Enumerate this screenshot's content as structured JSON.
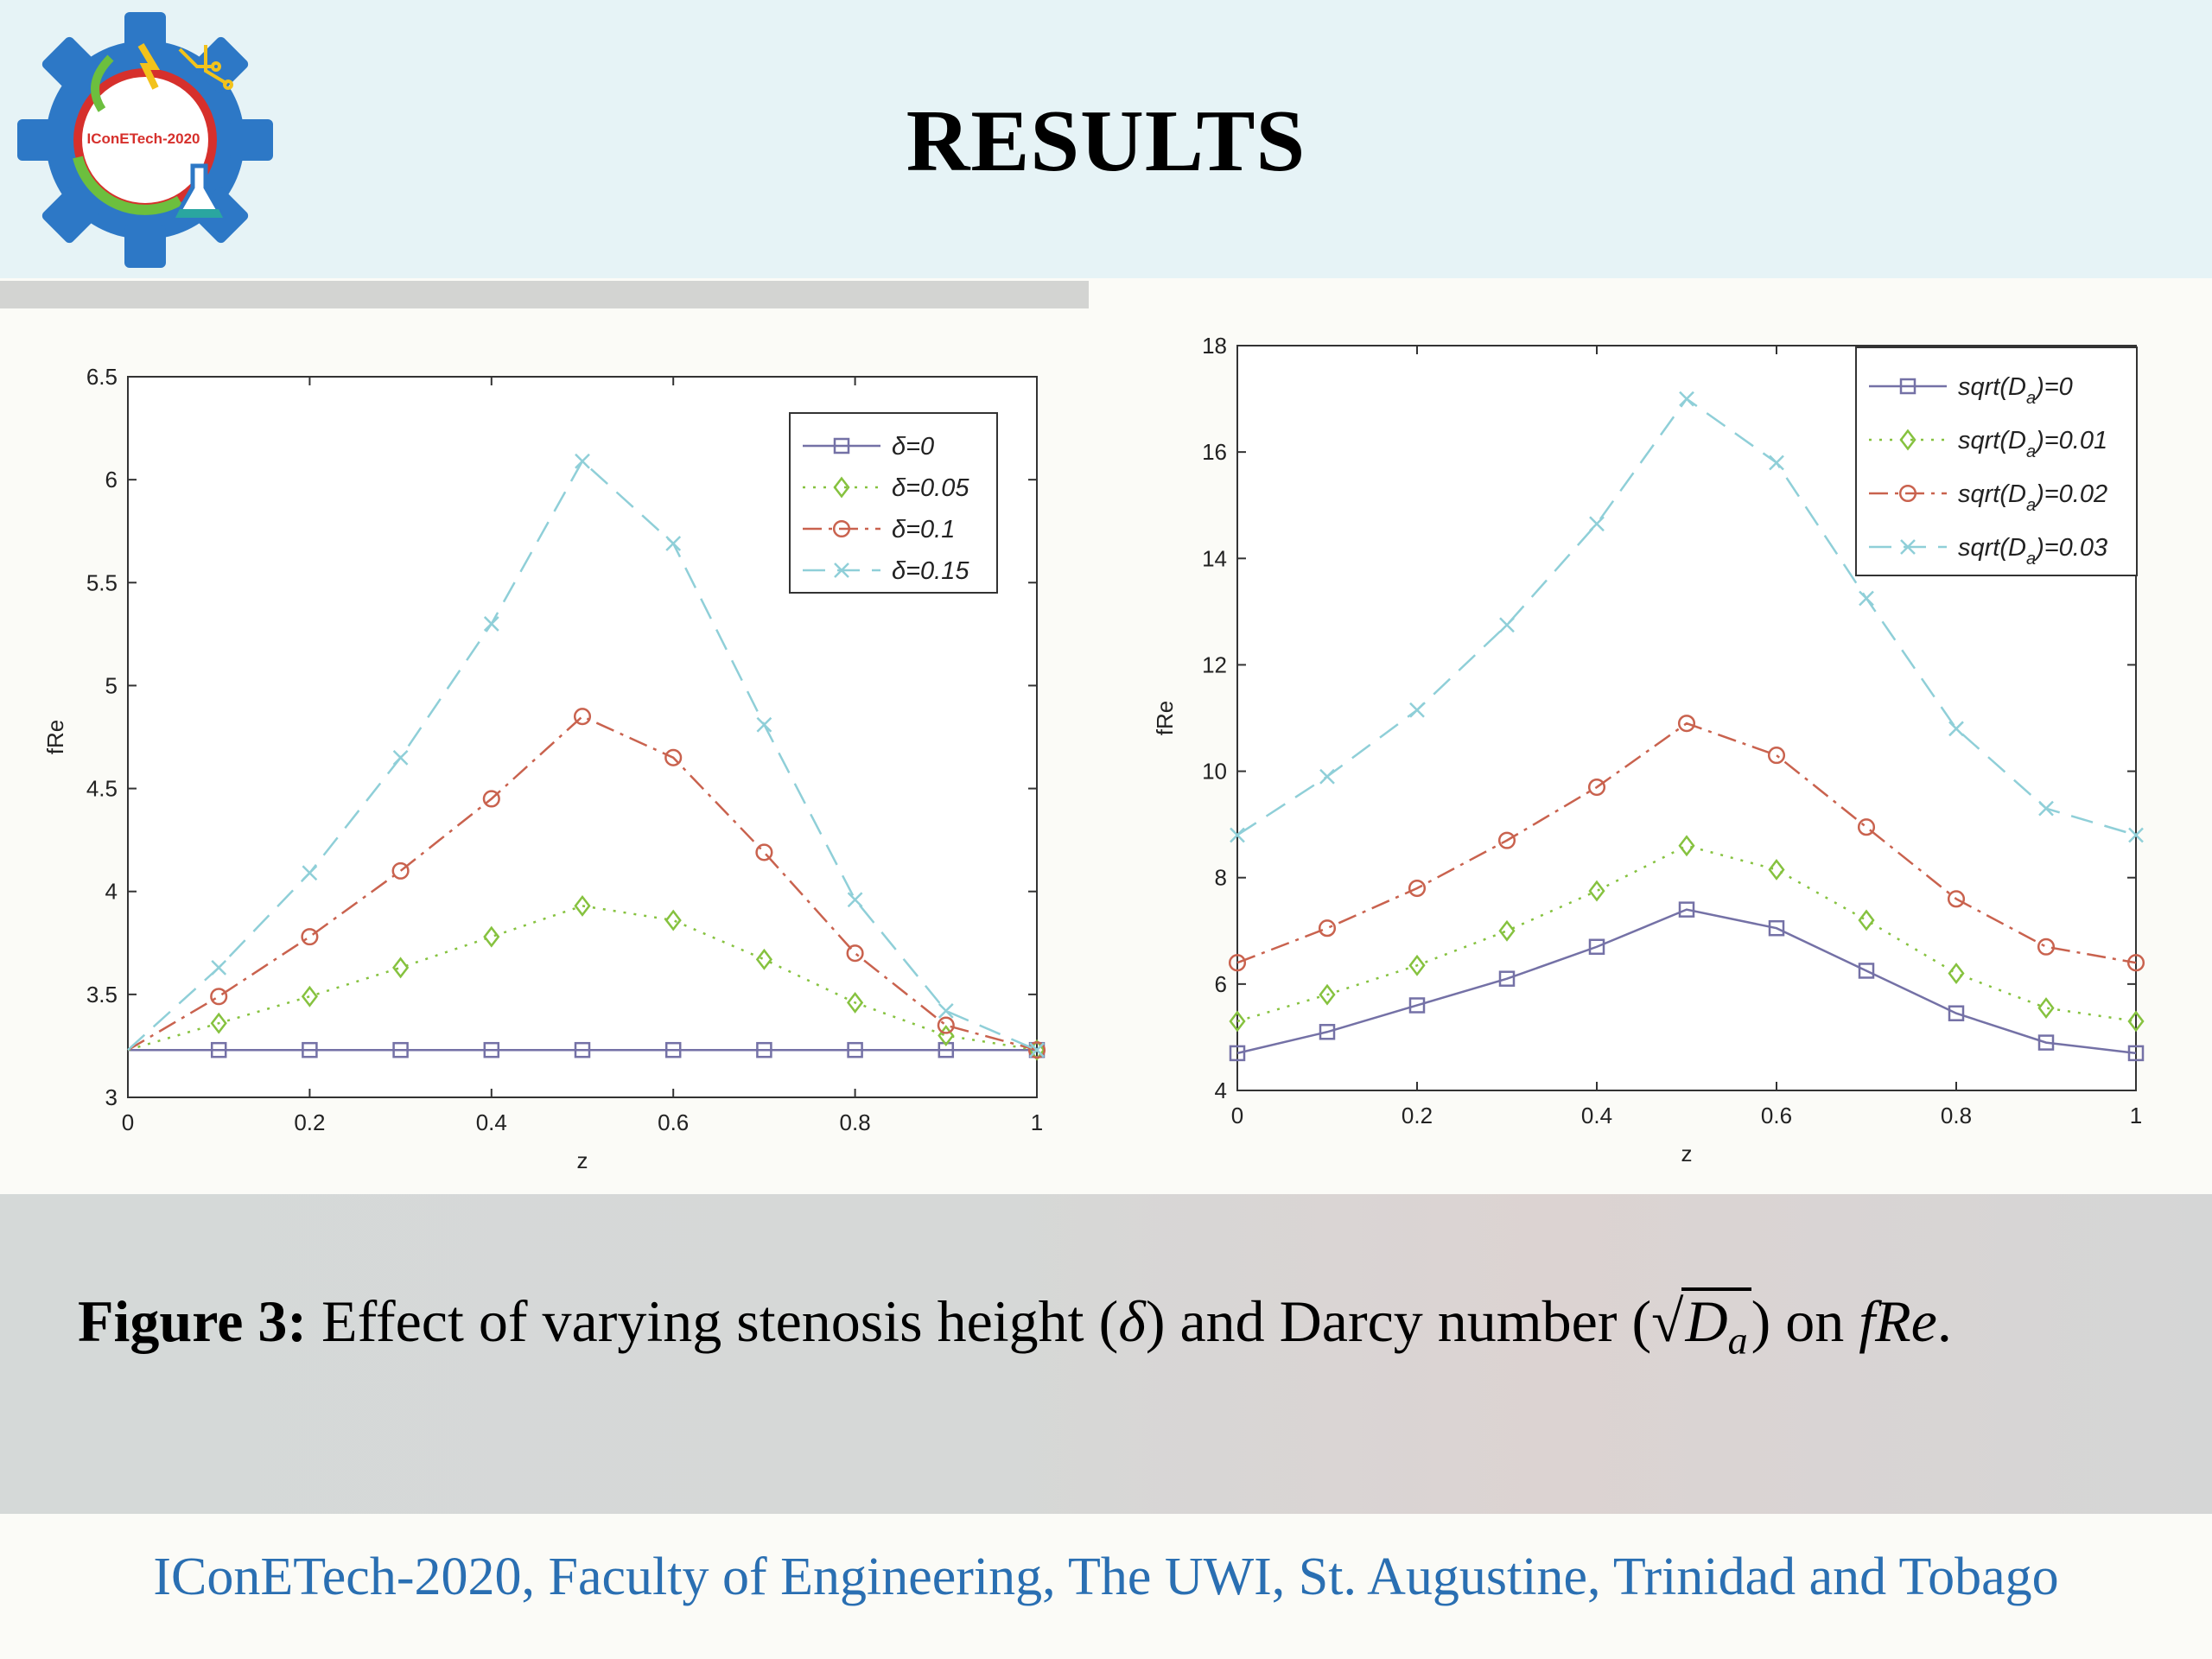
{
  "header": {
    "title": "RESULTS",
    "logo_text": "IConETech-2020"
  },
  "colors": {
    "header_bg": "#e6f3f6",
    "series": [
      "#7471a6",
      "#86c23f",
      "#c9624e",
      "#8fcfd8"
    ],
    "footer_text": "#2a6fb2"
  },
  "chart_data": [
    {
      "type": "line",
      "title": "",
      "xlabel": "z",
      "ylabel": "fRe",
      "xlim": [
        0,
        1
      ],
      "ylim": [
        3,
        6.5
      ],
      "xticks": [
        "0",
        "0.2",
        "0.4",
        "0.6",
        "0.8",
        "1"
      ],
      "yticks": [
        "3",
        "3.5",
        "4",
        "4.5",
        "5",
        "5.5",
        "6",
        "6.5"
      ],
      "legend_position": "top-right",
      "grid": false,
      "x": [
        0,
        0.1,
        0.2,
        0.3,
        0.4,
        0.5,
        0.6,
        0.7,
        0.8,
        0.9,
        1
      ],
      "series": [
        {
          "name": "δ=0",
          "marker": "square",
          "dash": "solid",
          "values": [
            3.23,
            3.23,
            3.23,
            3.23,
            3.23,
            3.23,
            3.23,
            3.23,
            3.23,
            3.23,
            3.23
          ]
        },
        {
          "name": "δ=0.05",
          "marker": "diamond",
          "dash": "dotted",
          "values": [
            3.23,
            3.36,
            3.49,
            3.63,
            3.78,
            3.93,
            3.86,
            3.67,
            3.46,
            3.3,
            3.23
          ]
        },
        {
          "name": "δ=0.1",
          "marker": "circle",
          "dash": "dashdot",
          "values": [
            3.23,
            3.49,
            3.78,
            4.1,
            4.45,
            4.85,
            4.65,
            4.19,
            3.7,
            3.35,
            3.23
          ]
        },
        {
          "name": "δ=0.15",
          "marker": "x",
          "dash": "dashed",
          "values": [
            3.23,
            3.63,
            4.09,
            4.65,
            5.3,
            6.09,
            5.69,
            4.81,
            3.96,
            3.42,
            3.23
          ]
        }
      ]
    },
    {
      "type": "line",
      "title": "",
      "xlabel": "z",
      "ylabel": "fRe",
      "xlim": [
        0,
        1
      ],
      "ylim": [
        4,
        18
      ],
      "xticks": [
        "0",
        "0.2",
        "0.4",
        "0.6",
        "0.8",
        "1"
      ],
      "yticks": [
        "4",
        "6",
        "8",
        "10",
        "12",
        "14",
        "16",
        "18"
      ],
      "legend_position": "top-right",
      "grid": false,
      "x": [
        0,
        0.1,
        0.2,
        0.3,
        0.4,
        0.5,
        0.6,
        0.7,
        0.8,
        0.9,
        1
      ],
      "series": [
        {
          "name": "sqrt(D",
          "name_sub": "a",
          "name_tail": ")=0",
          "marker": "square",
          "dash": "solid",
          "values": [
            4.7,
            5.1,
            5.6,
            6.1,
            6.7,
            7.4,
            7.05,
            6.25,
            5.45,
            4.9,
            4.7
          ]
        },
        {
          "name": "sqrt(D",
          "name_sub": "a",
          "name_tail": ")=0.01",
          "marker": "diamond",
          "dash": "dotted",
          "values": [
            5.3,
            5.8,
            6.35,
            7.0,
            7.75,
            8.6,
            8.15,
            7.2,
            6.2,
            5.55,
            5.3
          ]
        },
        {
          "name": "sqrt(D",
          "name_sub": "a",
          "name_tail": ")=0.02",
          "marker": "circle",
          "dash": "dashdot",
          "values": [
            6.4,
            7.05,
            7.8,
            8.7,
            9.7,
            10.9,
            10.3,
            8.95,
            7.6,
            6.7,
            6.4
          ]
        },
        {
          "name": "sqrt(D",
          "name_sub": "a",
          "name_tail": ")=0.03",
          "marker": "x",
          "dash": "dashed",
          "values": [
            8.8,
            9.9,
            11.15,
            12.75,
            14.65,
            17.0,
            15.8,
            13.25,
            10.8,
            9.3,
            8.8
          ]
        }
      ]
    }
  ],
  "caption": {
    "label": "Figure 3:",
    "text_1": " Effect of varying stenosis height (",
    "delta": "δ",
    "text_2": ") and Darcy number (",
    "sqrt_d": "D",
    "sqrt_sub": "a",
    "text_3": ") on ",
    "fre": "fRe",
    "end": "."
  },
  "footer": {
    "text": "IConETech-2020, Faculty of Engineering, The UWI, St. Augustine, Trinidad and Tobago"
  }
}
